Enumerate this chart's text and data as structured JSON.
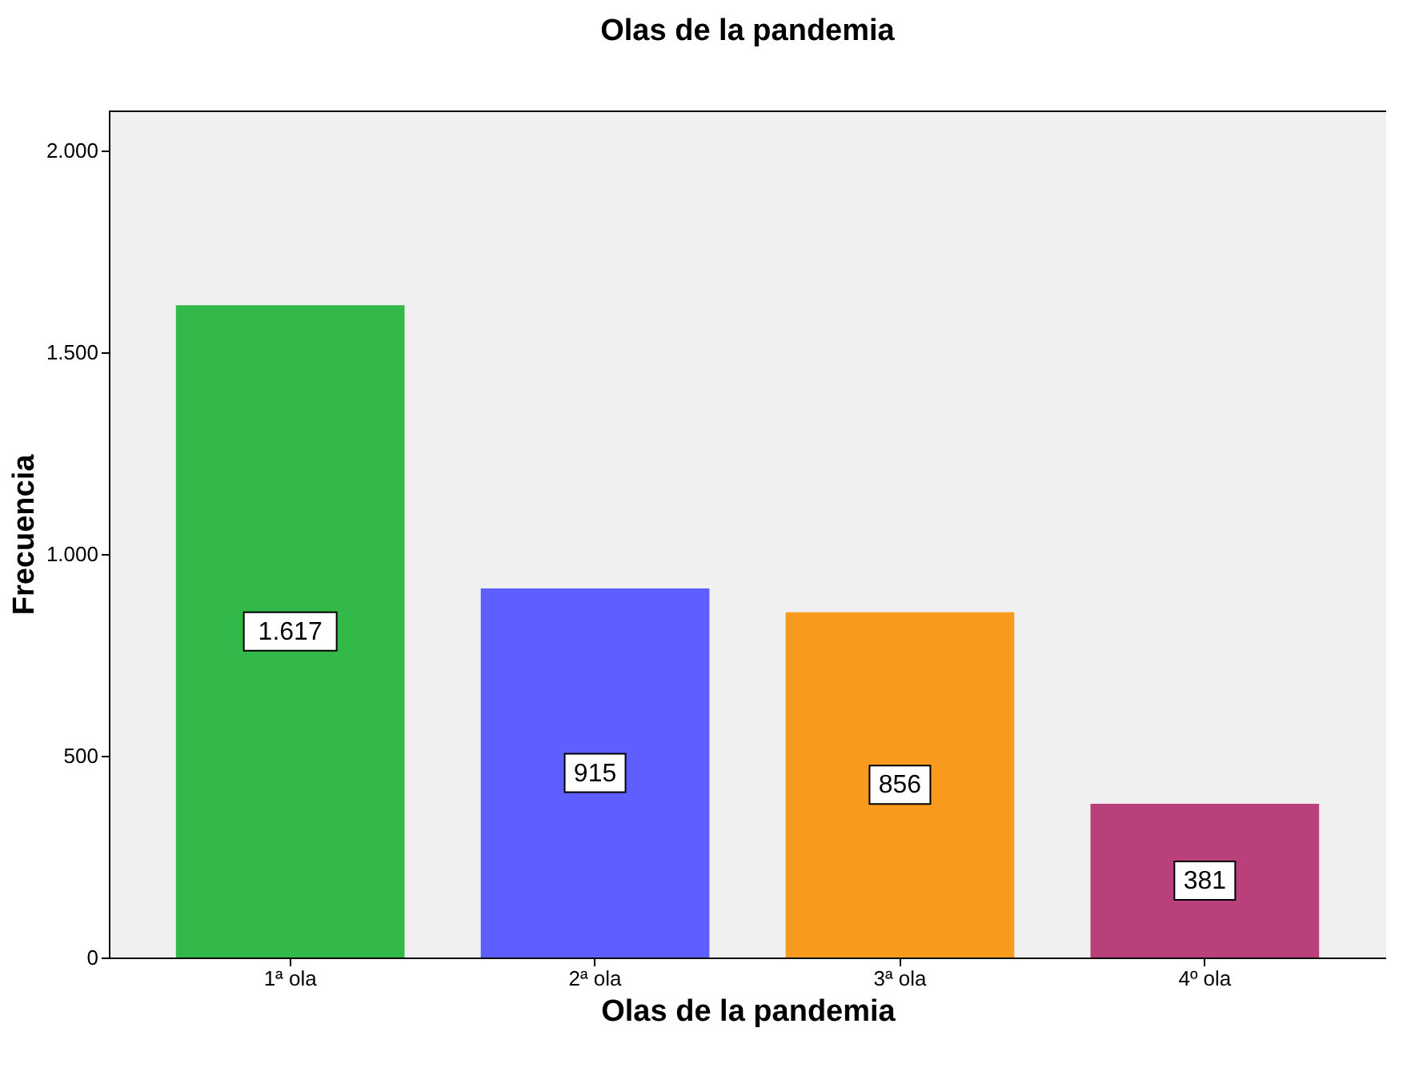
{
  "chart_data": {
    "type": "bar",
    "title": "Olas de la pandemia",
    "xlabel": "Olas de la pandemia",
    "ylabel": "Frecuencia",
    "categories": [
      "1ª ola",
      "2ª ola",
      "3ª ola",
      "4º ola"
    ],
    "values": [
      1617,
      915,
      856,
      381
    ],
    "colors": [
      "#33b84a",
      "#5f5fff",
      "#f79a1e",
      "#b9407a"
    ],
    "value_labels": [
      "1.617",
      "915",
      "856",
      "381"
    ],
    "ylim": [
      0,
      2100
    ],
    "yticks": [
      0,
      500,
      {
        "value": 1000,
        "label": "1.000"
      },
      {
        "value": 1500,
        "label": "1.500"
      },
      {
        "value": 2000,
        "label": "2.000"
      }
    ],
    "grid": false
  }
}
